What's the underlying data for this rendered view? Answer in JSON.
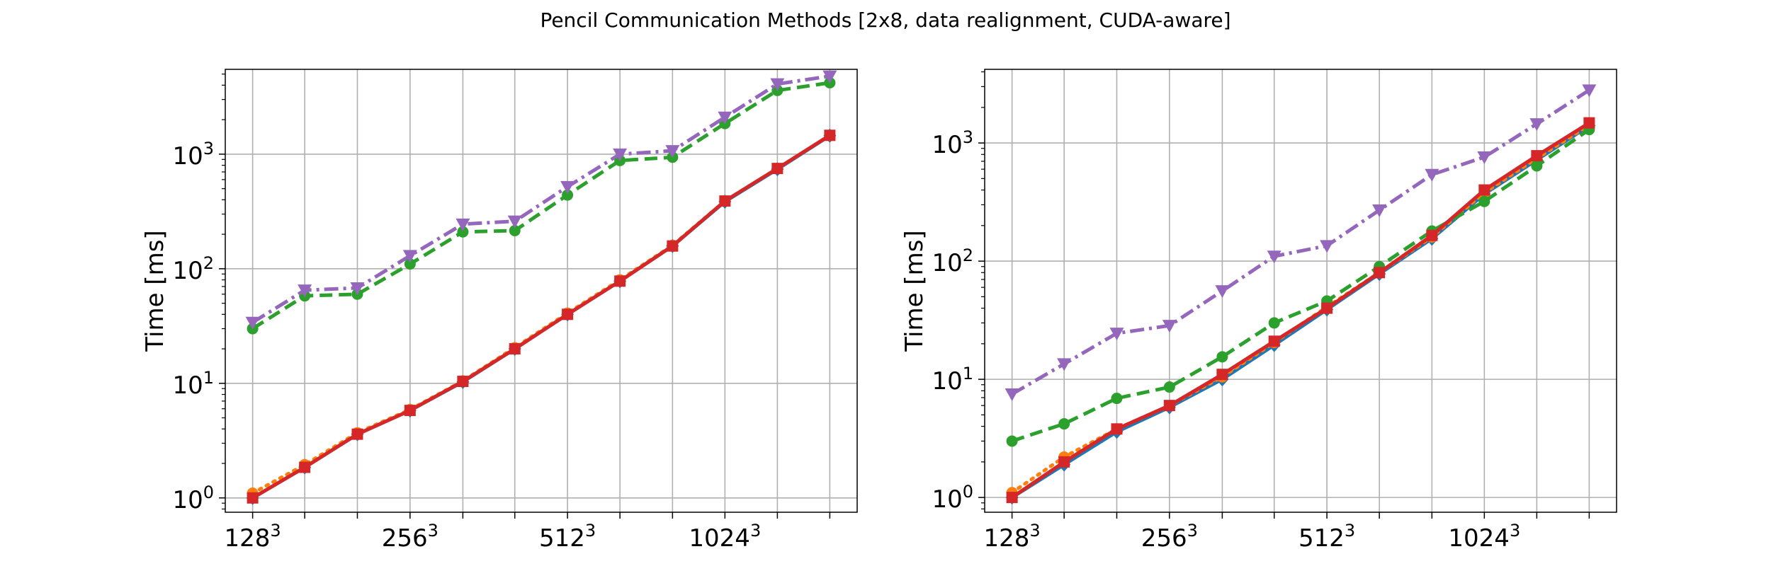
{
  "figure": {
    "title": "Pencil Communication Methods [2x8, data realignment, CUDA-aware]"
  },
  "chart_data": [
    {
      "type": "line",
      "yscale": "log",
      "ylabel": "Time [ms]",
      "xlabel": "",
      "grid": true,
      "x": [
        128,
        161,
        203,
        256,
        323,
        406,
        512,
        645,
        813,
        1024,
        1290,
        1625
      ],
      "xtick_labels": [
        {
          "x": 128,
          "base": "128",
          "exp": "3"
        },
        {
          "x": 256,
          "base": "256",
          "exp": "3"
        },
        {
          "x": 512,
          "base": "512",
          "exp": "3"
        },
        {
          "x": 1024,
          "base": "1024",
          "exp": "3"
        }
      ],
      "ytick_labels": [
        {
          "y": 1,
          "base": "10",
          "exp": "0"
        },
        {
          "y": 10,
          "base": "10",
          "exp": "1"
        },
        {
          "y": 100,
          "base": "10",
          "exp": "2"
        },
        {
          "y": 1000,
          "base": "10",
          "exp": "3"
        }
      ],
      "ylim": [
        0.75,
        5500
      ],
      "series": [
        {
          "color": "#1f77b4",
          "dash": "solid",
          "marker": "diamond",
          "values": [
            1.0,
            1.85,
            3.6,
            5.8,
            10.3,
            20,
            40,
            78,
            158,
            385,
            740,
            1450
          ]
        },
        {
          "color": "#ff7f0e",
          "dash": "dotted",
          "marker": "circle",
          "values": [
            1.1,
            1.95,
            3.7,
            5.9,
            10.5,
            20.5,
            41,
            80,
            160,
            390,
            750,
            1460
          ]
        },
        {
          "color": "#2ca02c",
          "dash": "dashed",
          "marker": "circle",
          "values": [
            30,
            58,
            60,
            110,
            210,
            215,
            440,
            880,
            940,
            1850,
            3600,
            4200
          ]
        },
        {
          "color": "#d62728",
          "dash": "solid",
          "marker": "square",
          "values": [
            1.0,
            1.85,
            3.6,
            5.8,
            10.4,
            20,
            40,
            78,
            158,
            390,
            750,
            1460
          ]
        },
        {
          "color": "#9467bd",
          "dash": "dashdot",
          "marker": "triangle-down",
          "values": [
            34,
            65,
            68,
            130,
            245,
            260,
            520,
            1000,
            1070,
            2100,
            4100,
            4800
          ]
        }
      ]
    },
    {
      "type": "line",
      "yscale": "log",
      "ylabel": "Time [ms]",
      "xlabel": "",
      "grid": true,
      "x": [
        128,
        161,
        203,
        256,
        323,
        406,
        512,
        645,
        813,
        1024,
        1290,
        1625
      ],
      "xtick_labels": [
        {
          "x": 128,
          "base": "128",
          "exp": "3"
        },
        {
          "x": 256,
          "base": "256",
          "exp": "3"
        },
        {
          "x": 512,
          "base": "512",
          "exp": "3"
        },
        {
          "x": 1024,
          "base": "1024",
          "exp": "3"
        }
      ],
      "ytick_labels": [
        {
          "y": 1,
          "base": "10",
          "exp": "0"
        },
        {
          "y": 10,
          "base": "10",
          "exp": "1"
        },
        {
          "y": 100,
          "base": "10",
          "exp": "2"
        },
        {
          "y": 1000,
          "base": "10",
          "exp": "3"
        }
      ],
      "ylim": [
        0.75,
        4200
      ],
      "series": [
        {
          "color": "#1f77b4",
          "dash": "solid",
          "marker": "diamond",
          "values": [
            1.0,
            1.9,
            3.6,
            5.8,
            10,
            19.5,
            39,
            78,
            155,
            370,
            720,
            1400
          ]
        },
        {
          "color": "#ff7f0e",
          "dash": "dotted",
          "marker": "circle",
          "values": [
            1.1,
            2.2,
            3.8,
            6.0,
            10.5,
            20.5,
            41,
            80,
            160,
            380,
            740,
            1420
          ]
        },
        {
          "color": "#2ca02c",
          "dash": "dashed",
          "marker": "circle",
          "values": [
            3.0,
            4.2,
            6.9,
            8.6,
            15.5,
            30,
            46,
            90,
            180,
            320,
            640,
            1300
          ]
        },
        {
          "color": "#d62728",
          "dash": "solid",
          "marker": "square",
          "values": [
            1.0,
            2.0,
            3.8,
            6.0,
            11,
            21,
            40,
            80,
            165,
            400,
            780,
            1480
          ]
        },
        {
          "color": "#9467bd",
          "dash": "dashdot",
          "marker": "triangle-down",
          "values": [
            7.5,
            13.5,
            24.5,
            28.5,
            56,
            110,
            135,
            270,
            540,
            760,
            1450,
            2800
          ]
        }
      ]
    }
  ]
}
